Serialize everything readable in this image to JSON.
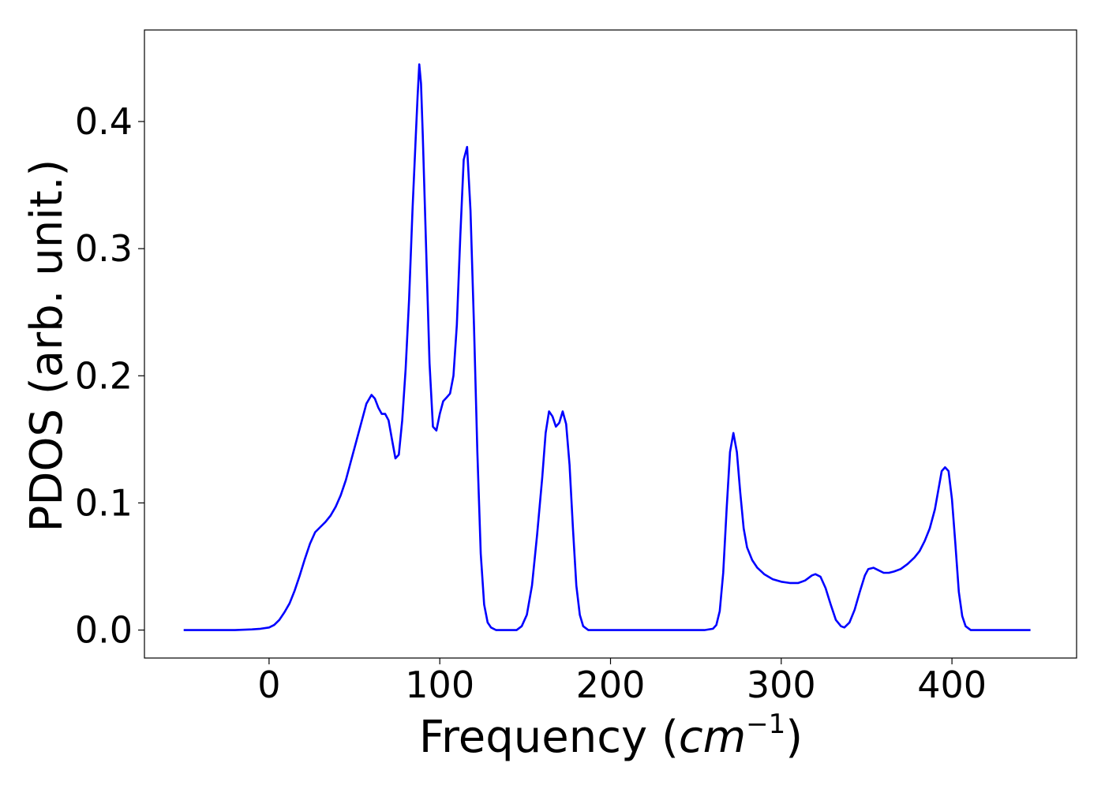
{
  "chart_data": {
    "type": "line",
    "title": "",
    "xlabel": "Frequency",
    "xlabel_unit_base": "cm",
    "xlabel_unit_exp": "−1",
    "ylabel": "PDOS (arb. unit.)",
    "xlim": [
      -73,
      473
    ],
    "ylim": [
      -0.022,
      0.472
    ],
    "xticks": [
      0,
      100,
      200,
      300,
      400
    ],
    "xtick_labels": [
      "0",
      "100",
      "200",
      "300",
      "400"
    ],
    "yticks": [
      0.0,
      0.1,
      0.2,
      0.3,
      0.4
    ],
    "ytick_labels": [
      "0.0",
      "0.1",
      "0.2",
      "0.3",
      "0.4"
    ],
    "grid": false,
    "series": [
      {
        "color": "#0000ff",
        "points": [
          [
            -50,
            0.0
          ],
          [
            -40,
            0.0
          ],
          [
            -30,
            0.0
          ],
          [
            -20,
            0.0
          ],
          [
            -10,
            0.0005
          ],
          [
            -5,
            0.001
          ],
          [
            0,
            0.002
          ],
          [
            3,
            0.004
          ],
          [
            6,
            0.008
          ],
          [
            9,
            0.014
          ],
          [
            12,
            0.021
          ],
          [
            15,
            0.031
          ],
          [
            18,
            0.043
          ],
          [
            21,
            0.056
          ],
          [
            24,
            0.068
          ],
          [
            27,
            0.077
          ],
          [
            30,
            0.081
          ],
          [
            33,
            0.085
          ],
          [
            36,
            0.09
          ],
          [
            39,
            0.097
          ],
          [
            42,
            0.106
          ],
          [
            45,
            0.118
          ],
          [
            48,
            0.133
          ],
          [
            51,
            0.148
          ],
          [
            54,
            0.163
          ],
          [
            57,
            0.178
          ],
          [
            60,
            0.185
          ],
          [
            62,
            0.182
          ],
          [
            64,
            0.175
          ],
          [
            66,
            0.17
          ],
          [
            68,
            0.17
          ],
          [
            70,
            0.165
          ],
          [
            72,
            0.15
          ],
          [
            74,
            0.135
          ],
          [
            76,
            0.138
          ],
          [
            78,
            0.165
          ],
          [
            80,
            0.205
          ],
          [
            82,
            0.26
          ],
          [
            84,
            0.33
          ],
          [
            86,
            0.39
          ],
          [
            87,
            0.42
          ],
          [
            88,
            0.445
          ],
          [
            89,
            0.43
          ],
          [
            90,
            0.39
          ],
          [
            92,
            0.3
          ],
          [
            94,
            0.21
          ],
          [
            96,
            0.16
          ],
          [
            98,
            0.157
          ],
          [
            100,
            0.17
          ],
          [
            102,
            0.18
          ],
          [
            104,
            0.183
          ],
          [
            106,
            0.186
          ],
          [
            108,
            0.2
          ],
          [
            110,
            0.24
          ],
          [
            112,
            0.31
          ],
          [
            114,
            0.37
          ],
          [
            116,
            0.38
          ],
          [
            118,
            0.33
          ],
          [
            120,
            0.24
          ],
          [
            122,
            0.14
          ],
          [
            124,
            0.06
          ],
          [
            126,
            0.02
          ],
          [
            128,
            0.006
          ],
          [
            130,
            0.002
          ],
          [
            133,
            0.0
          ],
          [
            140,
            0.0
          ],
          [
            145,
            0.0
          ],
          [
            148,
            0.003
          ],
          [
            151,
            0.012
          ],
          [
            154,
            0.035
          ],
          [
            157,
            0.075
          ],
          [
            160,
            0.12
          ],
          [
            162,
            0.155
          ],
          [
            164,
            0.172
          ],
          [
            166,
            0.168
          ],
          [
            168,
            0.16
          ],
          [
            170,
            0.163
          ],
          [
            172,
            0.172
          ],
          [
            174,
            0.162
          ],
          [
            176,
            0.13
          ],
          [
            178,
            0.08
          ],
          [
            180,
            0.035
          ],
          [
            182,
            0.012
          ],
          [
            184,
            0.003
          ],
          [
            187,
            0.0
          ],
          [
            200,
            0.0
          ],
          [
            220,
            0.0
          ],
          [
            240,
            0.0
          ],
          [
            255,
            0.0
          ],
          [
            260,
            0.001
          ],
          [
            262,
            0.004
          ],
          [
            264,
            0.015
          ],
          [
            266,
            0.045
          ],
          [
            268,
            0.095
          ],
          [
            270,
            0.14
          ],
          [
            272,
            0.155
          ],
          [
            274,
            0.14
          ],
          [
            276,
            0.108
          ],
          [
            278,
            0.08
          ],
          [
            280,
            0.065
          ],
          [
            283,
            0.055
          ],
          [
            286,
            0.049
          ],
          [
            290,
            0.044
          ],
          [
            295,
            0.04
          ],
          [
            300,
            0.038
          ],
          [
            305,
            0.037
          ],
          [
            310,
            0.037
          ],
          [
            314,
            0.039
          ],
          [
            318,
            0.043
          ],
          [
            320,
            0.044
          ],
          [
            323,
            0.042
          ],
          [
            326,
            0.033
          ],
          [
            329,
            0.02
          ],
          [
            332,
            0.008
          ],
          [
            335,
            0.003
          ],
          [
            337,
            0.002
          ],
          [
            340,
            0.006
          ],
          [
            343,
            0.016
          ],
          [
            346,
            0.03
          ],
          [
            349,
            0.043
          ],
          [
            351,
            0.048
          ],
          [
            354,
            0.049
          ],
          [
            357,
            0.047
          ],
          [
            360,
            0.045
          ],
          [
            363,
            0.045
          ],
          [
            366,
            0.046
          ],
          [
            370,
            0.048
          ],
          [
            374,
            0.052
          ],
          [
            378,
            0.057
          ],
          [
            381,
            0.062
          ],
          [
            384,
            0.07
          ],
          [
            387,
            0.08
          ],
          [
            390,
            0.095
          ],
          [
            392,
            0.11
          ],
          [
            394,
            0.125
          ],
          [
            396,
            0.128
          ],
          [
            398,
            0.125
          ],
          [
            400,
            0.103
          ],
          [
            402,
            0.068
          ],
          [
            404,
            0.03
          ],
          [
            406,
            0.011
          ],
          [
            408,
            0.003
          ],
          [
            411,
            0.0
          ],
          [
            420,
            0.0
          ],
          [
            430,
            0.0
          ],
          [
            440,
            0.0
          ],
          [
            446,
            0.0
          ]
        ]
      }
    ]
  }
}
